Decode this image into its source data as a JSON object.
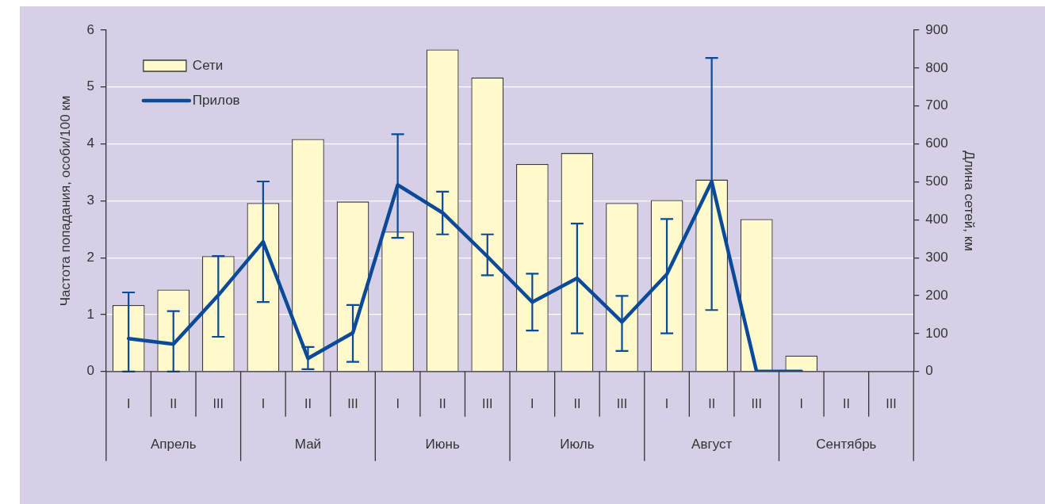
{
  "chart_data": {
    "type": "bar",
    "categories": [
      "I",
      "II",
      "III",
      "I",
      "II",
      "III",
      "I",
      "II",
      "III",
      "I",
      "II",
      "III",
      "I",
      "II",
      "III",
      "I",
      "II",
      "III"
    ],
    "series": [
      {
        "name": "Сети",
        "axis": "y2",
        "color": "#fff9cc",
        "values": [
          175,
          216,
          304,
          444,
          613,
          448,
          369,
          849,
          775,
          547,
          576,
          444,
          452,
          506,
          402,
          42,
          null,
          null
        ]
      },
      {
        "name": "Прилов",
        "type": "line",
        "axis": "y",
        "color": "#0b4a98",
        "values": [
          0.58,
          0.48,
          1.34,
          2.28,
          0.23,
          0.68,
          3.28,
          2.79,
          2.02,
          1.22,
          1.64,
          0.87,
          1.71,
          3.34,
          0,
          0,
          null,
          null
        ],
        "errors": [
          [
            0,
            1.39
          ],
          [
            0,
            1.06
          ],
          [
            0.61,
            2.03
          ],
          [
            1.22,
            3.34
          ],
          [
            0.04,
            0.43
          ],
          [
            0.17,
            1.17
          ],
          [
            2.35,
            4.17
          ],
          [
            2.41,
            3.16
          ],
          [
            1.69,
            2.41
          ],
          [
            0.72,
            1.72
          ],
          [
            0.67,
            2.6
          ],
          [
            0.36,
            1.33
          ],
          [
            0.67,
            2.68
          ],
          [
            1.08,
            5.51
          ],
          null,
          null,
          null,
          null
        ]
      }
    ],
    "ylabel": "Частота попадания, особи/100 км",
    "y2label": "Длина сетей, км",
    "ylim": [
      0,
      6
    ],
    "yticks": [
      0,
      1,
      2,
      3,
      4,
      5,
      6
    ],
    "y2lim": [
      0,
      900
    ],
    "y2ticks": [
      0,
      100,
      200,
      300,
      400,
      500,
      600,
      700,
      800,
      900
    ],
    "grid": "y",
    "legend": "top left",
    "marker": "none",
    "line_style": "solid",
    "annotations": [
      "Апрель",
      "Май",
      "Июнь",
      "Июль",
      "Август",
      "Сентябрь"
    ]
  }
}
